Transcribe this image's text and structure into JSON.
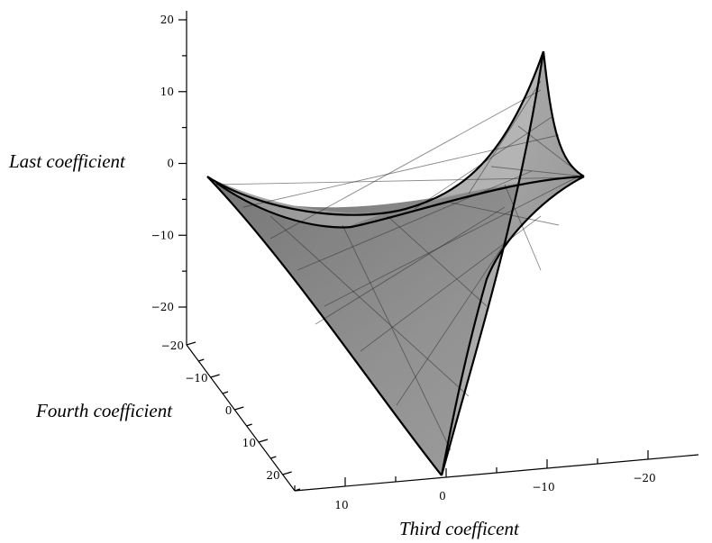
{
  "chart_data": {
    "type": "surface3d",
    "title": "",
    "axes": {
      "x": {
        "label": "Third coefficent",
        "range": [
          15,
          -25
        ],
        "ticks": [
          10,
          0,
          -10,
          -20
        ],
        "tick_labels": [
          "10",
          "0",
          "−10",
          "−20"
        ]
      },
      "y": {
        "label": "Fourth coefficient",
        "range": [
          -20,
          25
        ],
        "ticks": [
          -20,
          -10,
          0,
          10,
          20
        ],
        "tick_labels": [
          "−20",
          "−10",
          "0",
          "10",
          "20"
        ]
      },
      "z": {
        "label": "Last coefficient",
        "range": [
          -25,
          20
        ],
        "ticks": [
          20,
          10,
          0,
          -10,
          -20
        ],
        "tick_labels": [
          "20",
          "10",
          "0",
          "−10",
          "−20"
        ]
      }
    },
    "surface": {
      "description_shape": "swallowtail-like ruled surface",
      "fill_color": "#8a8a8a",
      "edge_color": "#000000",
      "grid": false
    }
  }
}
